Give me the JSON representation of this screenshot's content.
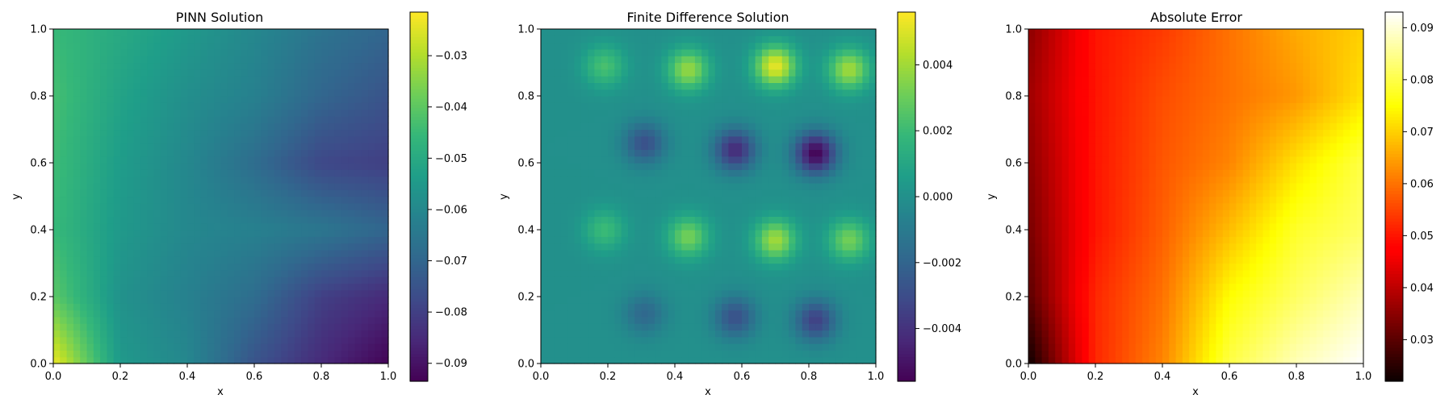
{
  "chart_data": [
    {
      "type": "heatmap",
      "title": "PINN Solution",
      "xlabel": "x",
      "ylabel": "y",
      "xlim": [
        0.0,
        1.0
      ],
      "ylim": [
        0.0,
        1.0
      ],
      "xticks": [
        "0.0",
        "0.2",
        "0.4",
        "0.6",
        "0.8",
        "1.0"
      ],
      "yticks": [
        "0.0",
        "0.2",
        "0.4",
        "0.6",
        "0.8",
        "1.0"
      ],
      "colormap": "viridis",
      "grid_size": 50,
      "colorbar": {
        "vmin": -0.0935,
        "vmax": -0.0215,
        "ticks": [
          -0.09,
          -0.08,
          -0.07,
          -0.06,
          -0.05,
          -0.04,
          -0.03
        ],
        "tick_labels": [
          "−0.09",
          "−0.08",
          "−0.07",
          "−0.06",
          "−0.05",
          "−0.04",
          "−0.03"
        ]
      },
      "field": {
        "grid_points": [
          0.0,
          0.2,
          0.4,
          0.6,
          0.8,
          1.0
        ],
        "values_by_row_y_from_0_to_1": [
          [
            -0.023,
            -0.055,
            -0.06,
            -0.075,
            -0.085,
            -0.093
          ],
          [
            -0.04,
            -0.057,
            -0.062,
            -0.068,
            -0.08,
            -0.085
          ],
          [
            -0.045,
            -0.055,
            -0.06,
            -0.062,
            -0.065,
            -0.07
          ],
          [
            -0.044,
            -0.054,
            -0.06,
            -0.068,
            -0.078,
            -0.08
          ],
          [
            -0.043,
            -0.052,
            -0.058,
            -0.062,
            -0.07,
            -0.075
          ],
          [
            -0.045,
            -0.05,
            -0.055,
            -0.06,
            -0.066,
            -0.07
          ]
        ]
      }
    },
    {
      "type": "heatmap",
      "title": "Finite Difference Solution",
      "xlabel": "x",
      "ylabel": "y",
      "xlim": [
        0.0,
        1.0
      ],
      "ylim": [
        0.0,
        1.0
      ],
      "xticks": [
        "0.0",
        "0.2",
        "0.4",
        "0.6",
        "0.8",
        "1.0"
      ],
      "yticks": [
        "0.0",
        "0.2",
        "0.4",
        "0.6",
        "0.8",
        "1.0"
      ],
      "colormap": "viridis",
      "grid_size": 50,
      "colorbar": {
        "vmin": -0.0056,
        "vmax": 0.0056,
        "ticks": [
          -0.004,
          -0.002,
          0.0,
          0.002,
          0.004
        ],
        "tick_labels": [
          "−0.004",
          "−0.002",
          "0.000",
          "0.002",
          "0.004"
        ]
      },
      "field": {
        "hot_spots": [
          {
            "x": 0.19,
            "y": 0.89,
            "value": 0.0023
          },
          {
            "x": 0.44,
            "y": 0.88,
            "value": 0.0038
          },
          {
            "x": 0.7,
            "y": 0.89,
            "value": 0.0052
          },
          {
            "x": 0.92,
            "y": 0.88,
            "value": 0.004
          },
          {
            "x": 0.31,
            "y": 0.66,
            "value": -0.0028
          },
          {
            "x": 0.58,
            "y": 0.64,
            "value": -0.0042
          },
          {
            "x": 0.82,
            "y": 0.63,
            "value": -0.0055
          },
          {
            "x": 0.19,
            "y": 0.4,
            "value": 0.002
          },
          {
            "x": 0.44,
            "y": 0.38,
            "value": 0.0032
          },
          {
            "x": 0.7,
            "y": 0.37,
            "value": 0.004
          },
          {
            "x": 0.92,
            "y": 0.37,
            "value": 0.0032
          },
          {
            "x": 0.31,
            "y": 0.15,
            "value": -0.0018
          },
          {
            "x": 0.58,
            "y": 0.14,
            "value": -0.0028
          },
          {
            "x": 0.82,
            "y": 0.13,
            "value": -0.0034
          }
        ]
      }
    },
    {
      "type": "heatmap",
      "title": "Absolute Error",
      "xlabel": "x",
      "ylabel": "y",
      "xlim": [
        0.0,
        1.0
      ],
      "ylim": [
        0.0,
        1.0
      ],
      "xticks": [
        "0.0",
        "0.2",
        "0.4",
        "0.6",
        "0.8",
        "1.0"
      ],
      "yticks": [
        "0.0",
        "0.2",
        "0.4",
        "0.6",
        "0.8",
        "1.0"
      ],
      "colormap": "hot",
      "grid_size": 50,
      "colorbar": {
        "vmin": 0.022,
        "vmax": 0.093,
        "ticks": [
          0.03,
          0.04,
          0.05,
          0.06,
          0.07,
          0.08,
          0.09
        ],
        "tick_labels": [
          "0.03",
          "0.04",
          "0.05",
          "0.06",
          "0.07",
          "0.08",
          "0.09"
        ]
      },
      "field": {
        "grid_points": [
          0.0,
          0.2,
          0.4,
          0.6,
          0.8,
          1.0
        ],
        "values_by_row_y_from_0_to_1": [
          [
            0.022,
            0.052,
            0.062,
            0.08,
            0.088,
            0.093
          ],
          [
            0.03,
            0.052,
            0.06,
            0.075,
            0.082,
            0.088
          ],
          [
            0.033,
            0.05,
            0.058,
            0.068,
            0.078,
            0.082
          ],
          [
            0.035,
            0.05,
            0.057,
            0.062,
            0.072,
            0.08
          ],
          [
            0.037,
            0.05,
            0.056,
            0.06,
            0.064,
            0.072
          ],
          [
            0.035,
            0.05,
            0.054,
            0.06,
            0.066,
            0.07
          ]
        ]
      }
    }
  ]
}
